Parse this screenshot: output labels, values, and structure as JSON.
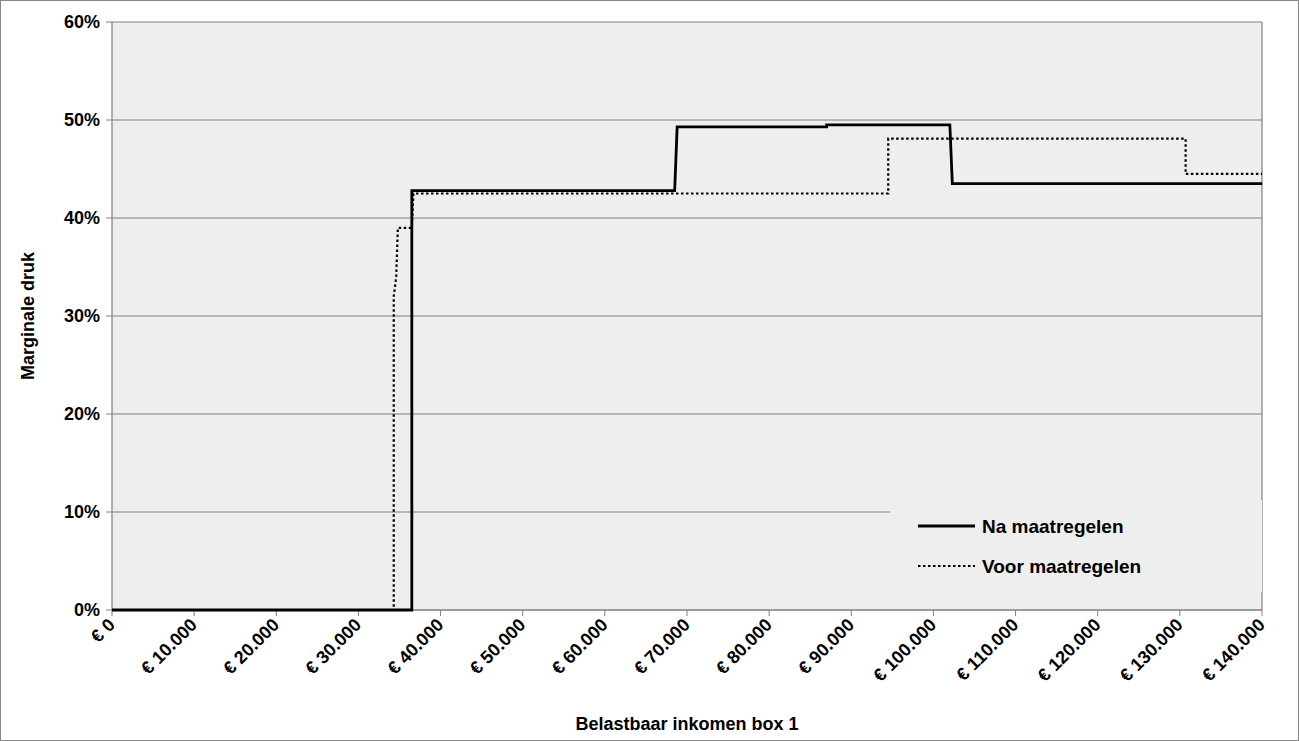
{
  "chart_data": {
    "type": "line",
    "x_label": "Belastbaar inkomen box 1",
    "y_label": "Marginale druk",
    "xlim": [
      0,
      140000
    ],
    "ylim": [
      0,
      60
    ],
    "xticks": [
      {
        "value": 0,
        "label": "€ 0"
      },
      {
        "value": 10000,
        "label": "€ 10.000"
      },
      {
        "value": 20000,
        "label": "€ 20.000"
      },
      {
        "value": 30000,
        "label": "€ 30.000"
      },
      {
        "value": 40000,
        "label": "€ 40.000"
      },
      {
        "value": 50000,
        "label": "€ 50.000"
      },
      {
        "value": 60000,
        "label": "€ 60.000"
      },
      {
        "value": 70000,
        "label": "€ 70.000"
      },
      {
        "value": 80000,
        "label": "€ 80.000"
      },
      {
        "value": 90000,
        "label": "€ 90.000"
      },
      {
        "value": 100000,
        "label": "€ 100.000"
      },
      {
        "value": 110000,
        "label": "€ 110.000"
      },
      {
        "value": 120000,
        "label": "€ 120.000"
      },
      {
        "value": 130000,
        "label": "€ 130.000"
      },
      {
        "value": 140000,
        "label": "€ 140.000"
      }
    ],
    "yticks": [
      {
        "value": 0,
        "label": "0%"
      },
      {
        "value": 10,
        "label": "10%"
      },
      {
        "value": 20,
        "label": "20%"
      },
      {
        "value": 30,
        "label": "30%"
      },
      {
        "value": 40,
        "label": "40%"
      },
      {
        "value": 50,
        "label": "50%"
      },
      {
        "value": 60,
        "label": "60%"
      }
    ],
    "grid": true,
    "legend": "lower right",
    "series": [
      {
        "name": "Na maatregelen",
        "color": "#000000",
        "line_style": "solid",
        "x": [
          0,
          36500,
          36500,
          68500,
          68800,
          87000,
          87000,
          102000,
          102300,
          140000
        ],
        "values": [
          0,
          0,
          42.8,
          42.8,
          49.3,
          49.3,
          49.5,
          49.5,
          43.5,
          43.5
        ]
      },
      {
        "name": "Voor maatregelen",
        "color": "#000000",
        "line_style": "dotted",
        "x": [
          0,
          34300,
          34300,
          34600,
          34800,
          36500,
          36700,
          94500,
          94500,
          130700,
          130700,
          140000
        ],
        "values": [
          0,
          0,
          32,
          34,
          39,
          39,
          42.5,
          42.5,
          48.1,
          48.1,
          44.5,
          44.5
        ]
      }
    ]
  }
}
